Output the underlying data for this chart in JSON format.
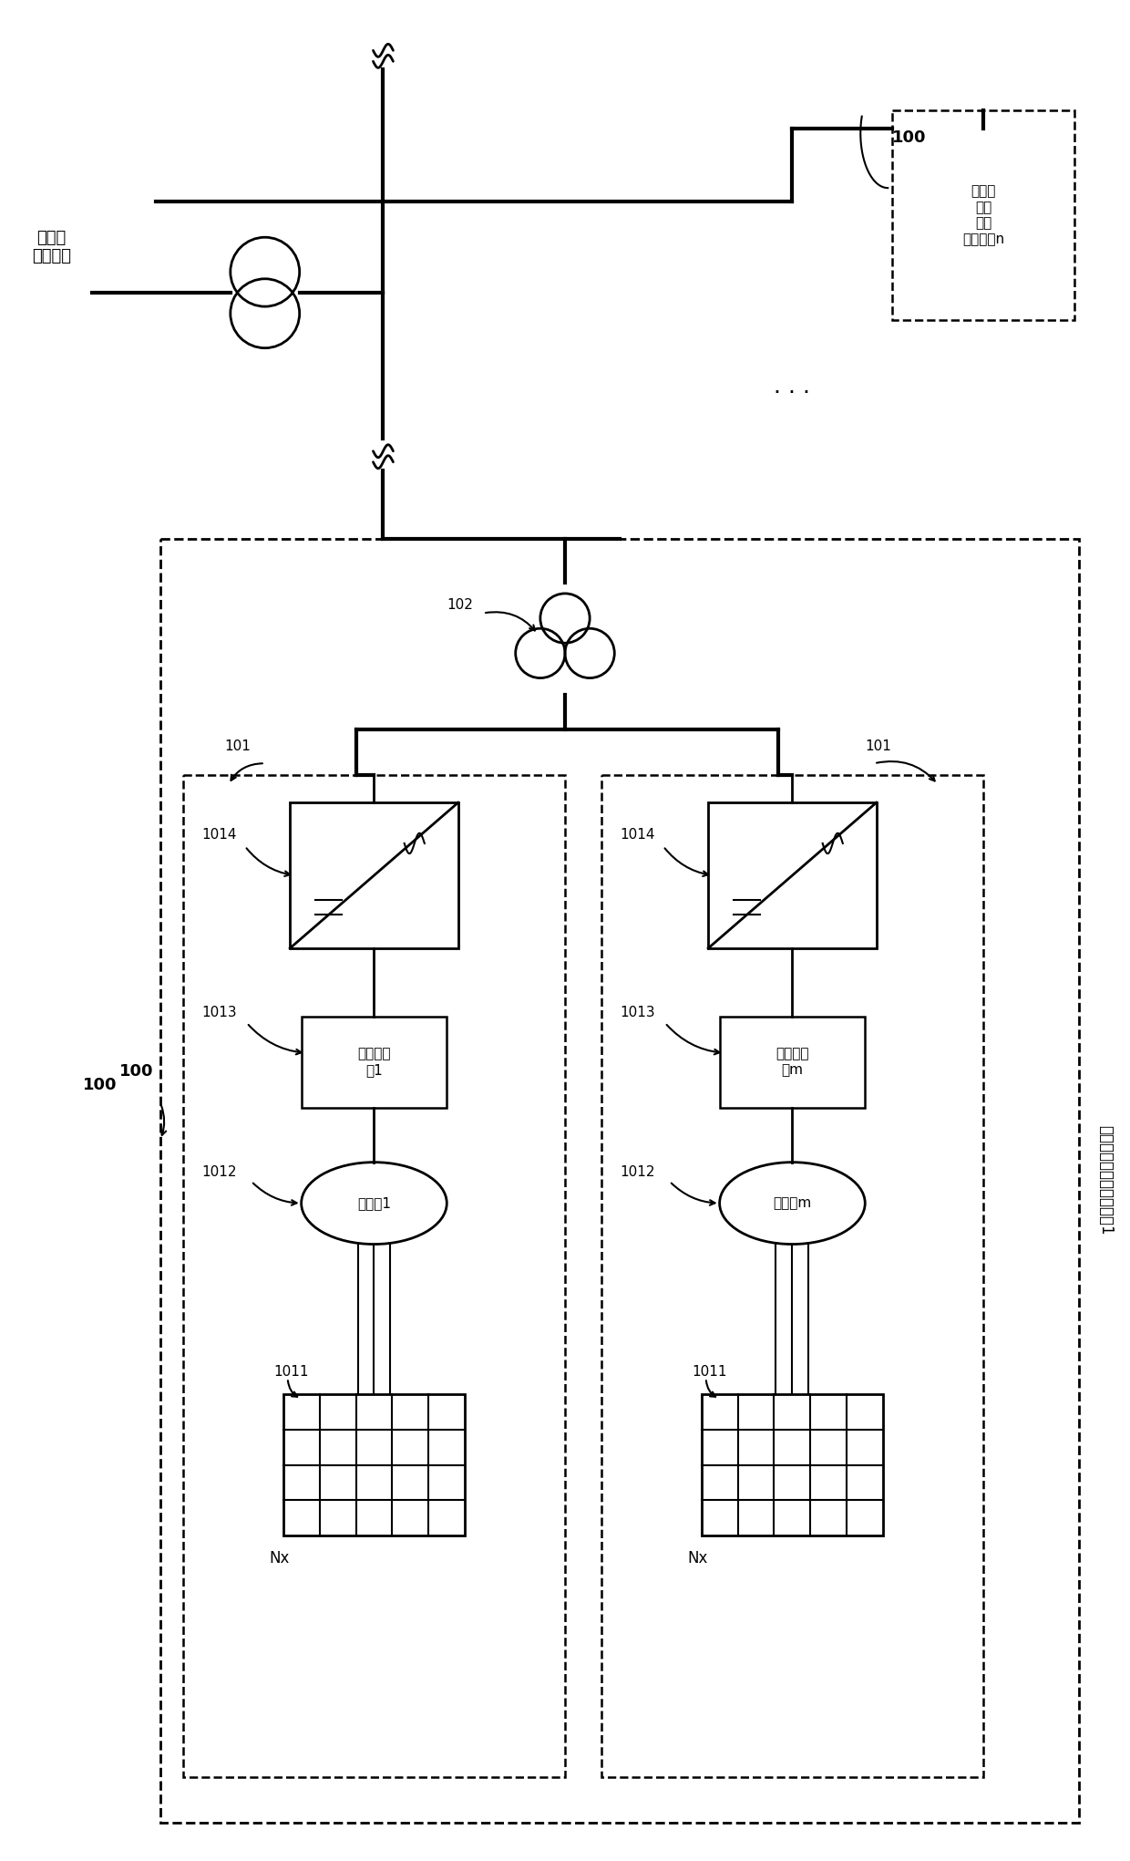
{
  "bg_color": "#ffffff",
  "line_color": "#000000",
  "title": "集中式光伏并网发电单元1",
  "labels": {
    "grid": "中高压\n交流电网",
    "unit_n": "集中式\n光伏\n并网\n发电单元n",
    "label_100_n": "100",
    "label_100_main": "100",
    "label_102": "102",
    "label_101_left": "101",
    "label_101_right": "101",
    "label_1014_left": "1014",
    "label_1014_right": "1014",
    "label_1013_left": "1013",
    "label_1013_right": "1013",
    "label_1012_left": "1012",
    "label_1012_right": "1012",
    "label_1011_left": "1011",
    "label_1011_right": "1011",
    "dc_box_left": "直流配电\n柜1",
    "dc_box_right": "直流配电\n柜m",
    "combiner_left": "汇流箱1",
    "combiner_right": "汇流箱m",
    "nx_left": "Nx",
    "nx_right": "Nx",
    "dots": "· · ·"
  }
}
